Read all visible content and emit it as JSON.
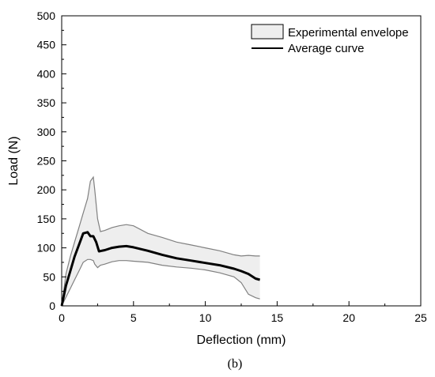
{
  "chart_data": {
    "type": "area",
    "xlabel": "Deflection (mm)",
    "ylabel": "Load (N)",
    "xlim": [
      0,
      25
    ],
    "ylim": [
      0,
      500
    ],
    "xticks": [
      0,
      5,
      10,
      15,
      20,
      25
    ],
    "yticks": [
      0,
      50,
      100,
      150,
      200,
      250,
      300,
      350,
      400,
      450,
      500
    ],
    "grid": false,
    "legend": {
      "placement": "top-right",
      "items": [
        {
          "label": "Experimental envelope",
          "kind": "band"
        },
        {
          "label": "Average curve",
          "kind": "line"
        }
      ]
    },
    "colors": {
      "band_fill": "#eeeeee",
      "band_edge": "#808080",
      "average_line": "#000000"
    },
    "series": [
      {
        "name": "Experimental envelope",
        "x": [
          0,
          0.3,
          0.6,
          0.9,
          1.2,
          1.5,
          1.8,
          2.0,
          2.2,
          2.3,
          2.5,
          2.7,
          3.0,
          3.5,
          4.0,
          4.5,
          5.0,
          6.0,
          7.0,
          8.0,
          9.0,
          10.0,
          11.0,
          12.0,
          12.5,
          13.0,
          13.5,
          13.8
        ],
        "upper": [
          0,
          55,
          85,
          110,
          135,
          160,
          185,
          215,
          222,
          200,
          150,
          128,
          130,
          135,
          138,
          140,
          138,
          125,
          118,
          110,
          105,
          100,
          95,
          88,
          86,
          87,
          86,
          86
        ],
        "lower": [
          0,
          15,
          30,
          45,
          60,
          75,
          80,
          80,
          78,
          72,
          66,
          70,
          72,
          76,
          78,
          78,
          77,
          75,
          70,
          67,
          65,
          62,
          57,
          50,
          40,
          20,
          14,
          12
        ]
      },
      {
        "name": "Average curve",
        "x": [
          0,
          0.3,
          0.6,
          0.9,
          1.2,
          1.5,
          1.8,
          2.0,
          2.2,
          2.4,
          2.6,
          3.0,
          3.5,
          4.0,
          4.5,
          5.0,
          6.0,
          7.0,
          8.0,
          9.0,
          10.0,
          11.0,
          12.0,
          12.5,
          13.0,
          13.5,
          13.8
        ],
        "y": [
          0,
          35,
          60,
          85,
          105,
          125,
          127,
          120,
          120,
          110,
          94,
          96,
          100,
          102,
          103,
          101,
          95,
          88,
          82,
          78,
          74,
          70,
          64,
          60,
          55,
          47,
          45
        ]
      }
    ]
  },
  "caption": "(b)"
}
